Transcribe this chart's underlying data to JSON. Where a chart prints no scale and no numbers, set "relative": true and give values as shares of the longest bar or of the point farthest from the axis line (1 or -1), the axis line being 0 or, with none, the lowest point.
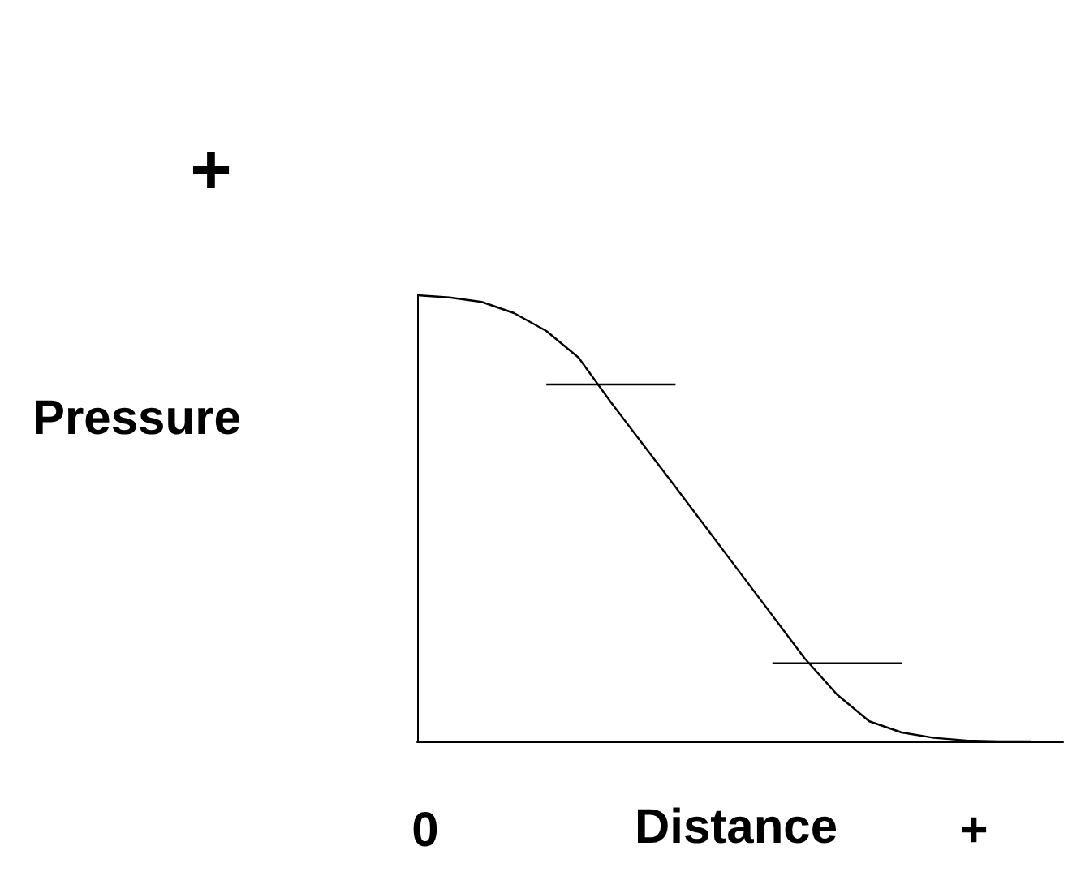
{
  "chart_data": {
    "type": "line",
    "relative": true,
    "xlabel": "Distance",
    "ylabel": "Pressure",
    "categories": [
      null,
      null,
      null,
      null,
      null,
      null,
      null,
      null,
      null,
      null,
      null,
      null,
      null,
      null,
      null,
      null,
      null,
      null,
      null,
      null,
      null
    ],
    "series": [
      {
        "color": "#000000",
        "values": [
          1.0,
          0.995,
          0.985,
          0.96,
          0.92,
          0.86,
          0.76,
          0.665,
          0.57,
          0.474,
          0.378,
          0.282,
          0.186,
          0.105,
          0.045,
          0.02,
          0.008,
          0.002,
          0,
          0,
          null
        ]
      },
      {
        "color": "#000000",
        "values": [
          null,
          null,
          null,
          null,
          0.8,
          0.8,
          0.8,
          0.8,
          0.8,
          null,
          null,
          null,
          null,
          null,
          null,
          null,
          null,
          null,
          null,
          null,
          null
        ]
      },
      {
        "color": "#000000",
        "values": [
          null,
          null,
          null,
          null,
          null,
          null,
          null,
          null,
          null,
          null,
          null,
          0.175,
          0.175,
          0.175,
          0.175,
          0.175,
          null,
          null,
          null,
          null,
          null
        ]
      }
    ],
    "annotations": [
      "+",
      "0",
      "+"
    ],
    "grid": false,
    "marker": "none",
    "line_style": "solid"
  }
}
